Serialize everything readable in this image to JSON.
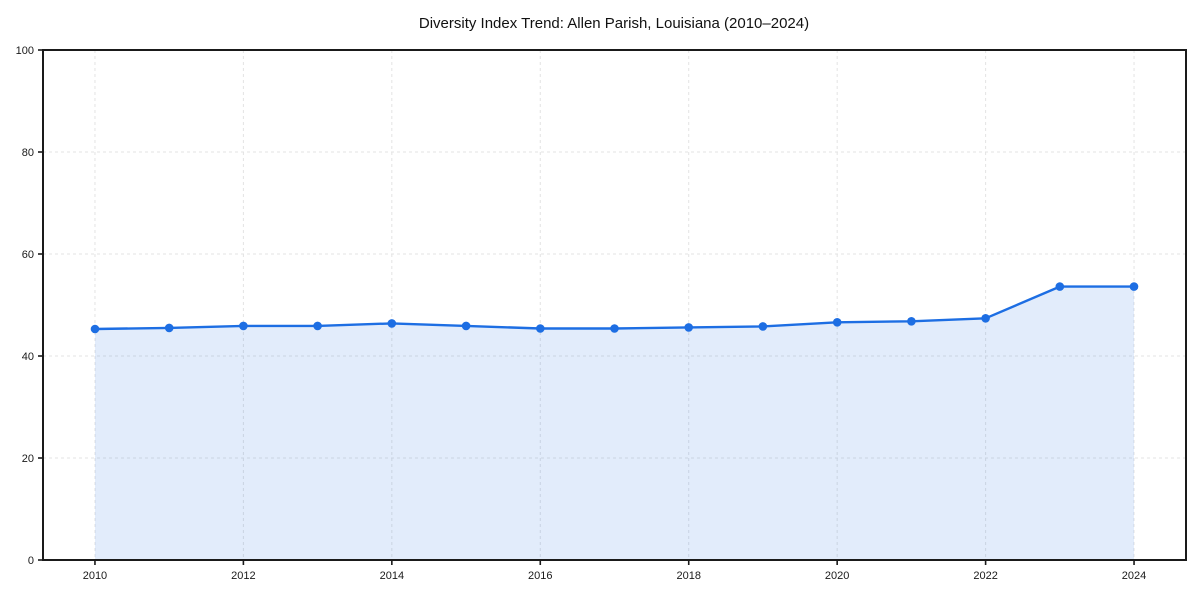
{
  "title": "Diversity Index Trend: Allen Parish, Louisiana (2010–2024)",
  "chart_data": {
    "type": "area",
    "title": "Diversity Index Trend: Allen Parish, Louisiana (2010–2024)",
    "xlabel": "",
    "ylabel": "",
    "x": [
      2010,
      2011,
      2012,
      2013,
      2014,
      2015,
      2016,
      2017,
      2018,
      2019,
      2020,
      2021,
      2022,
      2023,
      2024
    ],
    "series": [
      {
        "name": "Diversity Index",
        "values": [
          45.3,
          45.5,
          45.9,
          45.9,
          46.4,
          45.9,
          45.4,
          45.4,
          45.6,
          45.8,
          46.6,
          46.8,
          47.4,
          53.6,
          53.6
        ]
      }
    ],
    "xlim": [
      2009.3,
      2024.7
    ],
    "ylim": [
      0,
      100
    ],
    "xticks": [
      2010,
      2012,
      2014,
      2016,
      2018,
      2020,
      2022,
      2024
    ],
    "yticks": [
      0,
      20,
      40,
      60,
      80,
      100
    ],
    "grid": true,
    "grid_style": "dashed",
    "legend_position": "none",
    "colors": {
      "line": "#1d6ee3",
      "fill": "rgba(29, 110, 227, 0.13)",
      "grid": "#e3e3e3",
      "axis": "#1a1a1a",
      "tick_label": "#1a1a1a",
      "background": "#ffffff"
    },
    "marker": "circle"
  }
}
